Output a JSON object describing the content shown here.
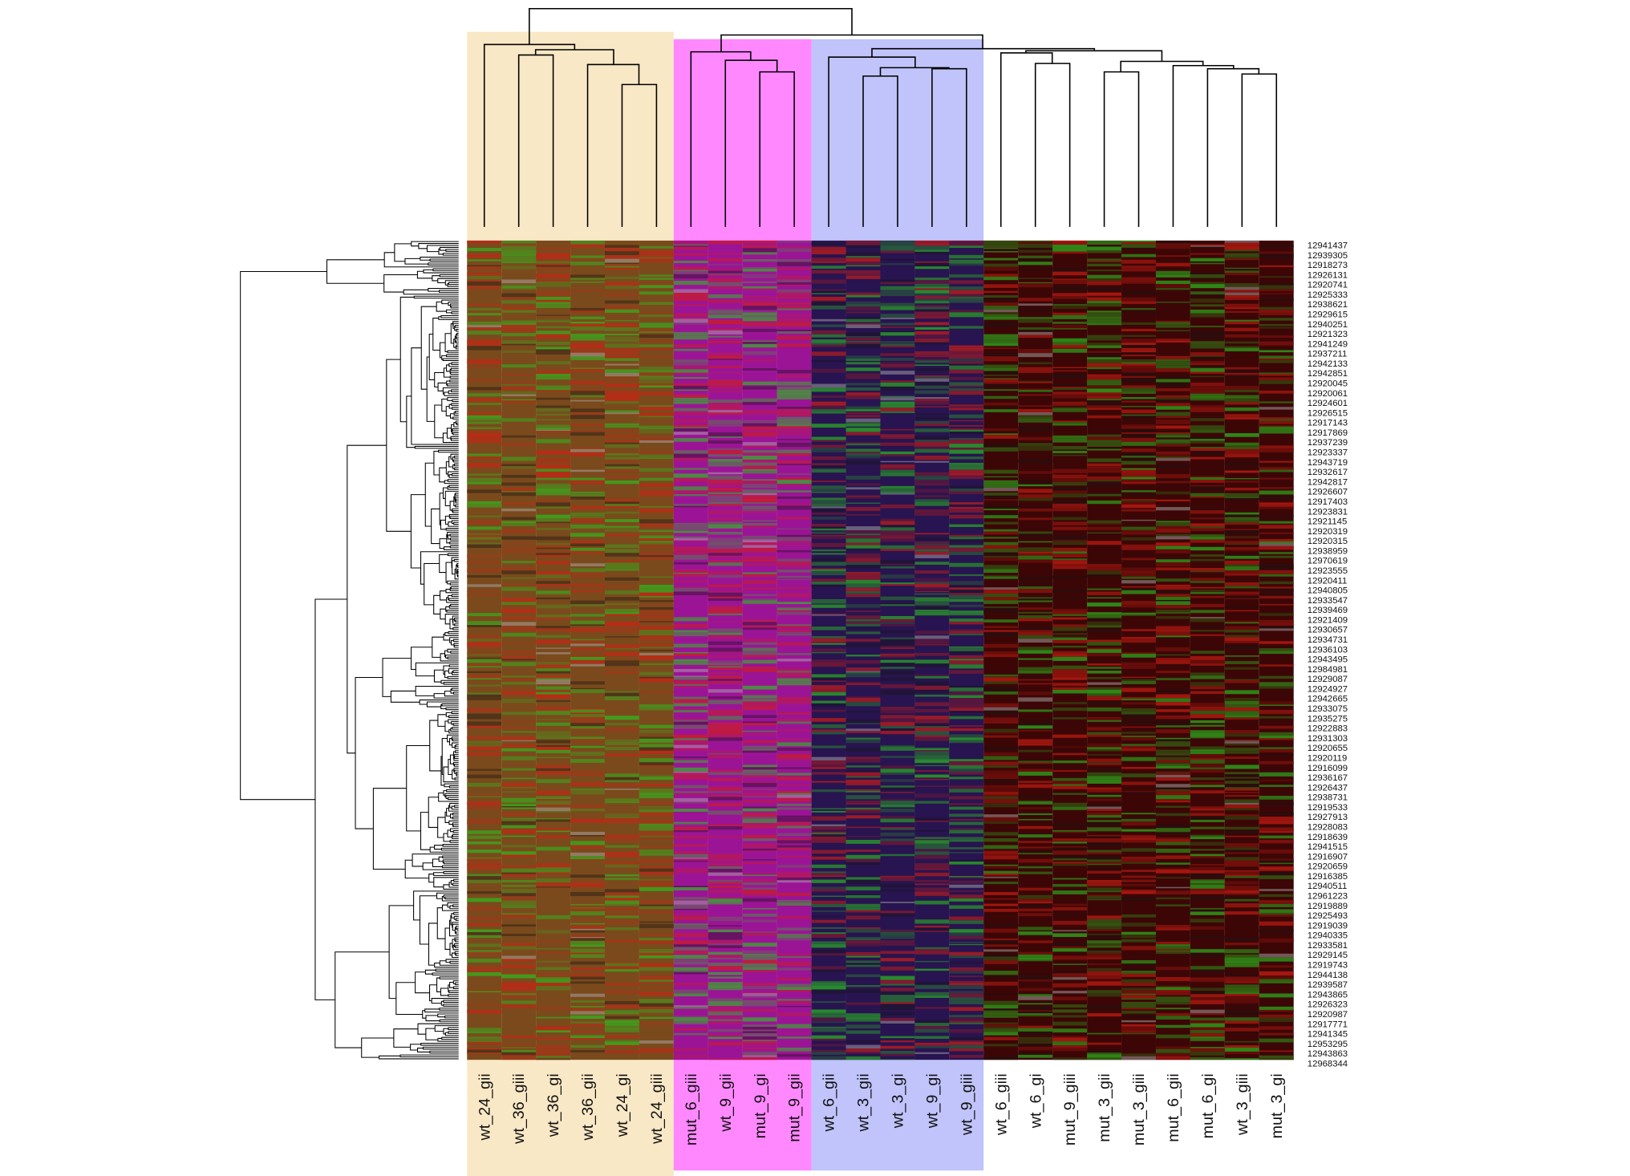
{
  "chart_data": {
    "type": "heatmap",
    "groups": [
      {
        "color": "#f9e8c6",
        "cell_color": "#7a4a1c",
        "labels": [
          "wt_24_gii",
          "wt_36_giii",
          "wt_36_gi",
          "wt_36_gii",
          "wt_24_gi",
          "wt_24_giii"
        ]
      },
      {
        "color": "#ff88ff",
        "cell_color": "#9c1496",
        "labels": [
          "mut_6_giii",
          "wt_9_gii",
          "mut_9_gi",
          "mut_9_gii"
        ]
      },
      {
        "color": "#c0c4fb",
        "cell_color": "#281450",
        "labels": [
          "wt_6_gii",
          "wt_3_gii",
          "wt_3_gi",
          "wt_9_gi",
          "wt_9_giii"
        ]
      },
      {
        "color": "#ffffff",
        "cell_color": "#3c0606",
        "labels": [
          "wt_6_giii",
          "wt_6_gi",
          "mut_9_giii",
          "mut_3_gii",
          "mut_3_giii",
          "mut_6_gii",
          "mut_6_gi",
          "wt_3_giii",
          "mut_3_gi"
        ]
      }
    ],
    "rows": [
      "12941437",
      "12939305",
      "12918273",
      "12926131",
      "12920741",
      "12925333",
      "12938621",
      "12929615",
      "12940251",
      "12921323",
      "12941249",
      "12937211",
      "12942133",
      "12942851",
      "12920045",
      "12920061",
      "12924601",
      "12926515",
      "12917143",
      "12917869",
      "12937239",
      "12923337",
      "12943719",
      "12932617",
      "12942817",
      "12926607",
      "12917403",
      "12923831",
      "12921145",
      "12920319",
      "12920315",
      "12938959",
      "12970619",
      "12923555",
      "12920411",
      "12940805",
      "12933547",
      "12939469",
      "12921409",
      "12930657",
      "12934731",
      "12936103",
      "12943495",
      "12984981",
      "12929087",
      "12924927",
      "12942665",
      "12933075",
      "12935275",
      "12922883",
      "12931303",
      "12920655",
      "12920119",
      "12916099",
      "12936167",
      "12926437",
      "12938731",
      "12919533",
      "12927913",
      "12928083",
      "12918639",
      "12941515",
      "12916907",
      "12920659",
      "12916385",
      "12940511",
      "12961223",
      "12919889",
      "12925493",
      "12919039",
      "12940335",
      "12933581",
      "12929145",
      "12919743",
      "12944138",
      "12939587",
      "12943865",
      "12926323",
      "12920987",
      "12917771",
      "12941345",
      "12953295",
      "12943863",
      "12968344"
    ]
  }
}
